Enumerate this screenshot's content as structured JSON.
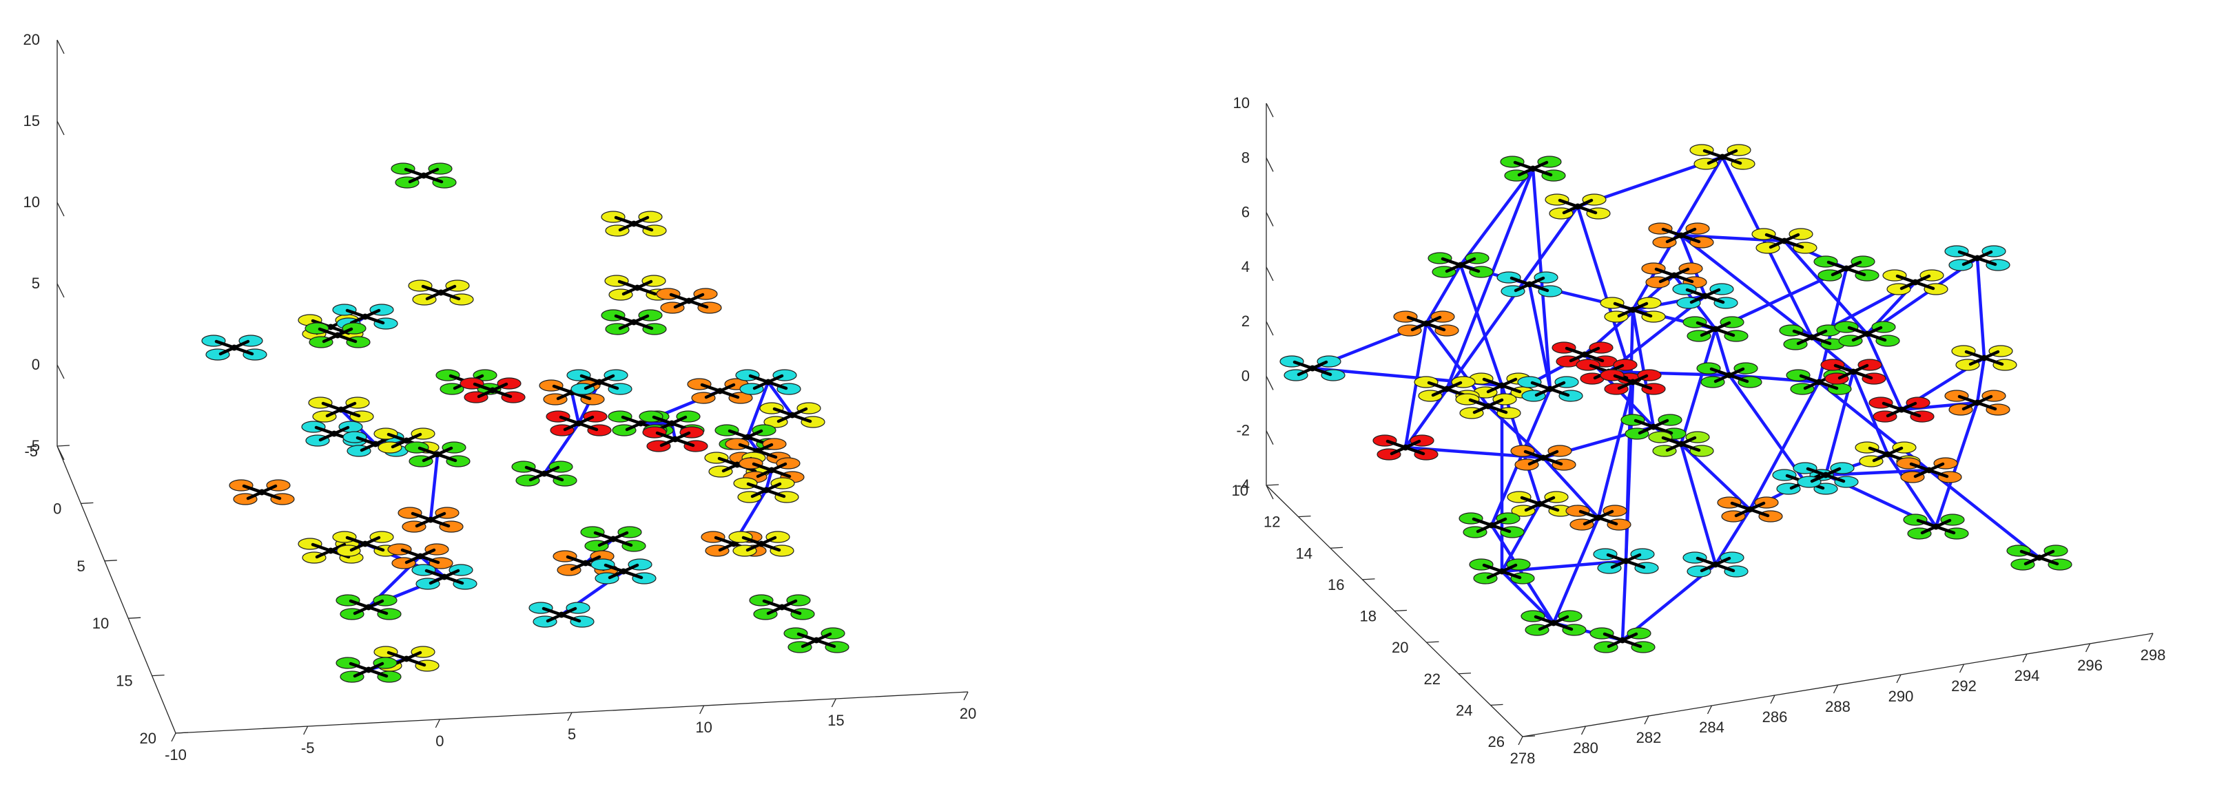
{
  "colors": {
    "link": "#1a1aff",
    "axis": "#262626",
    "rotor_palette": {
      "g": "#33dd11",
      "y": "#eeee11",
      "o": "#ff8811",
      "r": "#ee1111",
      "c": "#22dddd",
      "l": "#99ee11"
    }
  },
  "chart_data": [
    {
      "type": "scatter",
      "subtype": "3d-drone-swarm",
      "title": "",
      "xlabel": "",
      "ylabel": "",
      "zlabel": "",
      "xlim": [
        -10,
        20
      ],
      "ylim": [
        -5,
        20
      ],
      "zlim": [
        -5,
        20
      ],
      "grid": false,
      "x_ticks": [
        "-10",
        "-5",
        "0",
        "5",
        "10",
        "15",
        "20"
      ],
      "y_ticks": [
        "-5",
        "0",
        "5",
        "10",
        "15",
        "20"
      ],
      "z_ticks": [
        "-5",
        "0",
        "5",
        "10",
        "15",
        "20"
      ],
      "drones": [
        {
          "u": 615,
          "v": 255,
          "c": "g"
        },
        {
          "u": 920,
          "v": 325,
          "c": "y"
        },
        {
          "u": 640,
          "v": 425,
          "c": "y"
        },
        {
          "u": 925,
          "v": 418,
          "c": "y"
        },
        {
          "u": 1000,
          "v": 437,
          "c": "o"
        },
        {
          "u": 920,
          "v": 468,
          "c": "g"
        },
        {
          "u": 340,
          "v": 505,
          "c": "c"
        },
        {
          "u": 480,
          "v": 475,
          "c": "y"
        },
        {
          "u": 530,
          "v": 460,
          "c": "c"
        },
        {
          "u": 490,
          "v": 487,
          "c": "g"
        },
        {
          "u": 680,
          "v": 555,
          "c": "g"
        },
        {
          "u": 715,
          "v": 567,
          "c": "r"
        },
        {
          "u": 495,
          "v": 595,
          "c": "y"
        },
        {
          "u": 485,
          "v": 630,
          "c": "c"
        },
        {
          "u": 545,
          "v": 645,
          "c": "c"
        },
        {
          "u": 590,
          "v": 640,
          "c": "y"
        },
        {
          "u": 635,
          "v": 660,
          "c": "g"
        },
        {
          "u": 380,
          "v": 715,
          "c": "o"
        },
        {
          "u": 830,
          "v": 570,
          "c": "o"
        },
        {
          "u": 870,
          "v": 555,
          "c": "c"
        },
        {
          "u": 840,
          "v": 615,
          "c": "r"
        },
        {
          "u": 930,
          "v": 615,
          "c": "g"
        },
        {
          "u": 975,
          "v": 615,
          "c": "g"
        },
        {
          "u": 980,
          "v": 638,
          "c": "r"
        },
        {
          "u": 1045,
          "v": 568,
          "c": "o"
        },
        {
          "u": 1115,
          "v": 555,
          "c": "c"
        },
        {
          "u": 1150,
          "v": 603,
          "c": "y"
        },
        {
          "u": 1085,
          "v": 635,
          "c": "g"
        },
        {
          "u": 1100,
          "v": 655,
          "c": "o"
        },
        {
          "u": 1070,
          "v": 675,
          "c": "y"
        },
        {
          "u": 1120,
          "v": 683,
          "c": "o"
        },
        {
          "u": 1112,
          "v": 712,
          "c": "y"
        },
        {
          "u": 790,
          "v": 688,
          "c": "g"
        },
        {
          "u": 625,
          "v": 755,
          "c": "o"
        },
        {
          "u": 480,
          "v": 800,
          "c": "y"
        },
        {
          "u": 530,
          "v": 790,
          "c": "y"
        },
        {
          "u": 610,
          "v": 808,
          "c": "o"
        },
        {
          "u": 645,
          "v": 838,
          "c": "c"
        },
        {
          "u": 890,
          "v": 783,
          "c": "g"
        },
        {
          "u": 850,
          "v": 818,
          "c": "o"
        },
        {
          "u": 905,
          "v": 830,
          "c": "c"
        },
        {
          "u": 1065,
          "v": 790,
          "c": "o"
        },
        {
          "u": 1105,
          "v": 790,
          "c": "y"
        },
        {
          "u": 535,
          "v": 882,
          "c": "g"
        },
        {
          "u": 815,
          "v": 893,
          "c": "c"
        },
        {
          "u": 1135,
          "v": 882,
          "c": "g"
        },
        {
          "u": 1185,
          "v": 930,
          "c": "g"
        },
        {
          "u": 590,
          "v": 957,
          "c": "y"
        },
        {
          "u": 535,
          "v": 973,
          "c": "g"
        }
      ],
      "links": [
        [
          8,
          9
        ],
        [
          12,
          14
        ],
        [
          14,
          15
        ],
        [
          15,
          16
        ],
        [
          16,
          33
        ],
        [
          19,
          20
        ],
        [
          18,
          20
        ],
        [
          20,
          32
        ],
        [
          21,
          22
        ],
        [
          22,
          23
        ],
        [
          21,
          24
        ],
        [
          25,
          26
        ],
        [
          25,
          27
        ],
        [
          27,
          28
        ],
        [
          29,
          30
        ],
        [
          30,
          31
        ],
        [
          31,
          41
        ],
        [
          34,
          35
        ],
        [
          35,
          37
        ],
        [
          36,
          37
        ],
        [
          37,
          43
        ],
        [
          43,
          36
        ],
        [
          38,
          39
        ],
        [
          40,
          44
        ],
        [
          47,
          48
        ],
        [
          10,
          11
        ]
      ]
    },
    {
      "type": "scatter",
      "subtype": "3d-drone-swarm",
      "title": "",
      "xlabel": "",
      "ylabel": "",
      "zlabel": "",
      "xlim": [
        278,
        298
      ],
      "ylim": [
        10,
        26
      ],
      "zlim": [
        -4,
        10
      ],
      "grid": false,
      "x_ticks": [
        "278",
        "280",
        "282",
        "284",
        "286",
        "288",
        "290",
        "292",
        "294",
        "296",
        "298"
      ],
      "y_ticks": [
        "10",
        "12",
        "14",
        "16",
        "18",
        "20",
        "22",
        "24",
        "26"
      ],
      "z_ticks": [
        "-4",
        "-2",
        "0",
        "2",
        "4",
        "6",
        "8",
        "10"
      ],
      "drones": [
        {
          "u": 2225,
          "v": 245,
          "c": "g"
        },
        {
          "u": 2500,
          "v": 228,
          "c": "y"
        },
        {
          "u": 2290,
          "v": 300,
          "c": "y"
        },
        {
          "u": 2120,
          "v": 385,
          "c": "g"
        },
        {
          "u": 2220,
          "v": 413,
          "c": "c"
        },
        {
          "u": 2070,
          "v": 470,
          "c": "o"
        },
        {
          "u": 1905,
          "v": 535,
          "c": "c"
        },
        {
          "u": 2440,
          "v": 342,
          "c": "o"
        },
        {
          "u": 2590,
          "v": 350,
          "c": "y"
        },
        {
          "u": 2680,
          "v": 390,
          "c": "g"
        },
        {
          "u": 2430,
          "v": 400,
          "c": "o"
        },
        {
          "u": 2475,
          "v": 430,
          "c": "c"
        },
        {
          "u": 2370,
          "v": 450,
          "c": "y"
        },
        {
          "u": 2490,
          "v": 478,
          "c": "g"
        },
        {
          "u": 2780,
          "v": 410,
          "c": "y"
        },
        {
          "u": 2870,
          "v": 375,
          "c": "c"
        },
        {
          "u": 2630,
          "v": 490,
          "c": "g"
        },
        {
          "u": 2710,
          "v": 485,
          "c": "g"
        },
        {
          "u": 2300,
          "v": 515,
          "c": "r"
        },
        {
          "u": 2335,
          "v": 540,
          "c": "r"
        },
        {
          "u": 2370,
          "v": 555,
          "c": "r"
        },
        {
          "u": 2180,
          "v": 560,
          "c": "y"
        },
        {
          "u": 2250,
          "v": 565,
          "c": "c"
        },
        {
          "u": 2100,
          "v": 565,
          "c": "y"
        },
        {
          "u": 2160,
          "v": 590,
          "c": "y"
        },
        {
          "u": 2510,
          "v": 545,
          "c": "g"
        },
        {
          "u": 2640,
          "v": 555,
          "c": "g"
        },
        {
          "u": 2690,
          "v": 540,
          "c": "r"
        },
        {
          "u": 2880,
          "v": 520,
          "c": "y"
        },
        {
          "u": 2760,
          "v": 595,
          "c": "r"
        },
        {
          "u": 2870,
          "v": 585,
          "c": "o"
        },
        {
          "u": 2400,
          "v": 620,
          "c": "g"
        },
        {
          "u": 2440,
          "v": 645,
          "c": "l"
        },
        {
          "u": 2040,
          "v": 650,
          "c": "r"
        },
        {
          "u": 2240,
          "v": 665,
          "c": "o"
        },
        {
          "u": 2740,
          "v": 660,
          "c": "y"
        },
        {
          "u": 2800,
          "v": 683,
          "c": "o"
        },
        {
          "u": 2620,
          "v": 700,
          "c": "c"
        },
        {
          "u": 2650,
          "v": 690,
          "c": "c"
        },
        {
          "u": 2235,
          "v": 732,
          "c": "y"
        },
        {
          "u": 2320,
          "v": 752,
          "c": "o"
        },
        {
          "u": 2540,
          "v": 740,
          "c": "o"
        },
        {
          "u": 2165,
          "v": 763,
          "c": "g"
        },
        {
          "u": 2810,
          "v": 765,
          "c": "g"
        },
        {
          "u": 2360,
          "v": 815,
          "c": "c"
        },
        {
          "u": 2490,
          "v": 820,
          "c": "c"
        },
        {
          "u": 2180,
          "v": 830,
          "c": "g"
        },
        {
          "u": 2960,
          "v": 810,
          "c": "g"
        },
        {
          "u": 2255,
          "v": 905,
          "c": "g"
        },
        {
          "u": 2355,
          "v": 930,
          "c": "g"
        }
      ],
      "links": [
        [
          0,
          23
        ],
        [
          0,
          22
        ],
        [
          1,
          12
        ],
        [
          1,
          16
        ],
        [
          1,
          2
        ],
        [
          2,
          20
        ],
        [
          2,
          33
        ],
        [
          3,
          5
        ],
        [
          3,
          4
        ],
        [
          4,
          22
        ],
        [
          4,
          13
        ],
        [
          5,
          6
        ],
        [
          5,
          33
        ],
        [
          5,
          24
        ],
        [
          6,
          21
        ],
        [
          7,
          16
        ],
        [
          7,
          8
        ],
        [
          8,
          9
        ],
        [
          9,
          26
        ],
        [
          10,
          13
        ],
        [
          11,
          12
        ],
        [
          12,
          31
        ],
        [
          12,
          44
        ],
        [
          13,
          25
        ],
        [
          13,
          32
        ],
        [
          14,
          17
        ],
        [
          14,
          16
        ],
        [
          15,
          28
        ],
        [
          16,
          27
        ],
        [
          17,
          29
        ],
        [
          18,
          31
        ],
        [
          19,
          25
        ],
        [
          20,
          40
        ],
        [
          21,
          39
        ],
        [
          22,
          42
        ],
        [
          23,
          24
        ],
        [
          24,
          34
        ],
        [
          25,
          37
        ],
        [
          26,
          36
        ],
        [
          26,
          41
        ],
        [
          27,
          35
        ],
        [
          28,
          29
        ],
        [
          29,
          30
        ],
        [
          30,
          43
        ],
        [
          31,
          34
        ],
        [
          32,
          45
        ],
        [
          33,
          34
        ],
        [
          34,
          40
        ],
        [
          35,
          37
        ],
        [
          36,
          47
        ],
        [
          37,
          41
        ],
        [
          38,
          43
        ],
        [
          39,
          46
        ],
        [
          40,
          48
        ],
        [
          41,
          45
        ],
        [
          42,
          48
        ],
        [
          43,
          35
        ],
        [
          44,
          46
        ],
        [
          44,
          49
        ],
        [
          45,
          49
        ],
        [
          46,
          48
        ],
        [
          48,
          49
        ],
        [
          10,
          18
        ],
        [
          11,
          19
        ],
        [
          21,
          46
        ],
        [
          27,
          38
        ],
        [
          7,
          11
        ],
        [
          3,
          21
        ],
        [
          18,
          24
        ],
        [
          0,
          3
        ],
        [
          8,
          17
        ],
        [
          15,
          17
        ],
        [
          28,
          30
        ],
        [
          31,
          32
        ],
        [
          39,
          42
        ],
        [
          20,
          44
        ],
        [
          25,
          26
        ],
        [
          32,
          41
        ],
        [
          9,
          13
        ],
        [
          36,
          38
        ]
      ]
    }
  ]
}
